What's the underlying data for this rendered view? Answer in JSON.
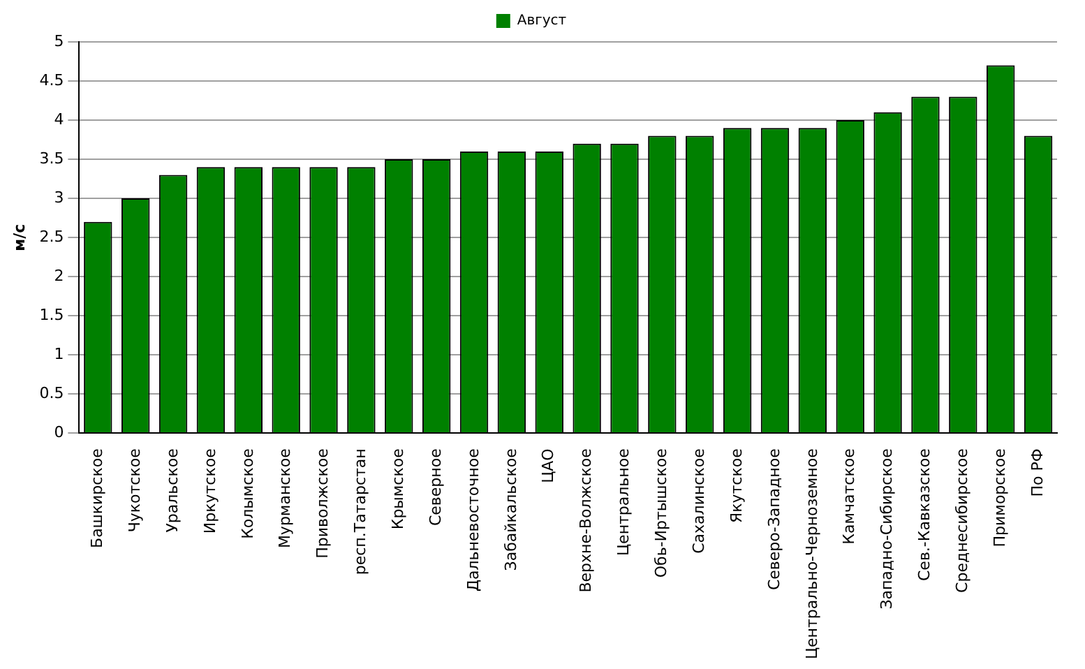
{
  "chart_data": {
    "type": "bar",
    "ylabel": "м/с",
    "categories": [
      "Башкирское",
      "Чукотское",
      "Уральское",
      "Иркутское",
      "Колымское",
      "Мурманское",
      "Приволжское",
      "респ.Татарстан",
      "Крымское",
      "Северное",
      "Дальневосточное",
      "Забайкальское",
      "ЦАО",
      "Верхне-Волжское",
      "Центральное",
      "Обь-Иртышское",
      "Сахалинское",
      "Якутское",
      "Северо-Западное",
      "Центрально-Черноземное",
      "Камчатское",
      "Западно-Сибирское",
      "Сев.-Кавказское",
      "Среднесибирское",
      "Приморское",
      "По РФ"
    ],
    "series": [
      {
        "name": "Август",
        "color": "#008000",
        "values": [
          2.7,
          3.0,
          3.3,
          3.4,
          3.4,
          3.4,
          3.4,
          3.4,
          3.5,
          3.5,
          3.6,
          3.6,
          3.6,
          3.7,
          3.7,
          3.8,
          3.8,
          3.9,
          3.9,
          3.9,
          4.0,
          4.1,
          4.3,
          4.3,
          4.7,
          3.8
        ]
      }
    ],
    "ylim": [
      0,
      5
    ],
    "yticks": [
      0,
      0.5,
      1,
      1.5,
      2,
      2.5,
      3,
      3.5,
      4,
      4.5,
      5
    ],
    "grid": "y",
    "legend": "top"
  }
}
